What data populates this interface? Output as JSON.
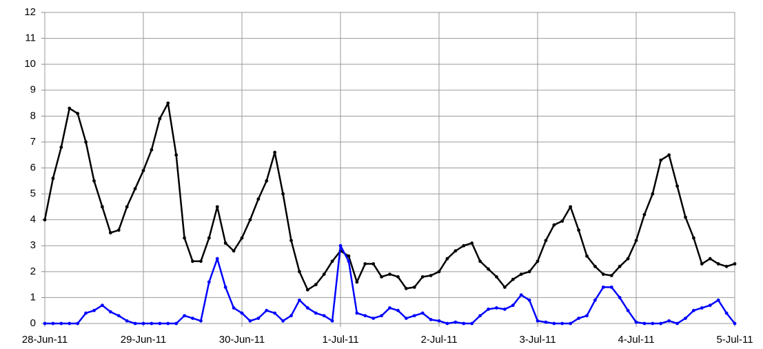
{
  "chart_data": {
    "type": "line",
    "x": [
      0,
      2,
      4,
      6,
      8,
      10,
      12,
      14,
      16,
      18,
      20,
      22,
      24,
      26,
      28,
      30,
      32,
      34,
      36,
      38,
      40,
      42,
      44,
      46,
      48,
      50,
      52,
      54,
      56,
      58,
      60,
      62,
      64,
      66,
      68,
      70,
      72,
      74,
      76,
      78,
      80,
      82,
      84,
      86,
      88,
      90,
      92,
      94,
      96,
      98,
      100,
      102,
      104,
      106,
      108,
      110,
      112,
      114,
      116,
      118,
      120,
      122,
      124,
      126,
      128,
      130,
      132,
      134,
      136,
      138,
      140,
      142,
      144,
      146,
      148,
      150,
      152,
      154,
      156,
      158,
      160,
      162,
      164,
      166,
      168
    ],
    "series": [
      {
        "color": "#000000",
        "values": [
          4.0,
          5.6,
          6.8,
          8.3,
          8.1,
          7.0,
          5.5,
          4.5,
          3.5,
          3.6,
          4.5,
          5.2,
          5.9,
          6.7,
          7.9,
          8.5,
          6.5,
          3.3,
          2.4,
          2.4,
          3.3,
          4.5,
          3.1,
          2.8,
          3.3,
          4.0,
          4.8,
          5.5,
          6.6,
          5.0,
          3.2,
          2.0,
          1.3,
          1.5,
          1.9,
          2.4,
          2.8,
          2.6,
          1.6,
          2.3,
          2.3,
          1.8,
          1.9,
          1.8,
          1.35,
          1.4,
          1.8,
          1.85,
          2.0,
          2.5,
          2.8,
          3.0,
          3.1,
          2.4,
          2.1,
          1.8,
          1.4,
          1.7,
          1.9,
          2.0,
          2.4,
          3.2,
          3.8,
          3.95,
          4.5,
          3.6,
          2.6,
          2.2,
          1.9,
          1.85,
          2.2,
          2.5,
          3.2,
          4.2,
          5.0,
          6.3,
          6.5,
          5.3,
          4.1,
          3.3,
          2.3,
          2.5,
          2.3,
          2.2,
          2.3
        ]
      },
      {
        "color": "#0000ff",
        "values": [
          0,
          0,
          0,
          0,
          0,
          0.4,
          0.5,
          0.7,
          0.45,
          0.3,
          0.1,
          0,
          0,
          0,
          0,
          0,
          0,
          0.3,
          0.2,
          0.1,
          1.6,
          2.5,
          1.4,
          0.6,
          0.4,
          0.1,
          0.2,
          0.5,
          0.4,
          0.1,
          0.3,
          0.9,
          0.6,
          0.4,
          0.3,
          0.1,
          3.0,
          2.4,
          0.4,
          0.3,
          0.2,
          0.3,
          0.6,
          0.5,
          0.2,
          0.3,
          0.4,
          0.15,
          0.1,
          0,
          0.05,
          0,
          0,
          0.3,
          0.55,
          0.6,
          0.55,
          0.7,
          1.1,
          0.9,
          0.1,
          0.05,
          0,
          0,
          0,
          0.2,
          0.3,
          0.9,
          1.4,
          1.4,
          1.0,
          0.5,
          0.05,
          0,
          0,
          0,
          0.1,
          0,
          0.2,
          0.5,
          0.6,
          0.7,
          0.9,
          0.4,
          0
        ]
      }
    ],
    "xlim": [
      0,
      168
    ],
    "xticks": [
      {
        "value": 0,
        "label": "28-Jun-11"
      },
      {
        "value": 24,
        "label": "29-Jun-11"
      },
      {
        "value": 48,
        "label": "30-Jun-11"
      },
      {
        "value": 72,
        "label": "1-Jul-11"
      },
      {
        "value": 96,
        "label": "2-Jul-11"
      },
      {
        "value": 120,
        "label": "3-Jul-11"
      },
      {
        "value": 144,
        "label": "4-Jul-11"
      },
      {
        "value": 168,
        "label": "5-Jul-11"
      }
    ],
    "ylim": [
      0,
      12
    ],
    "yticks": [
      0,
      1,
      2,
      3,
      4,
      5,
      6,
      7,
      8,
      9,
      10,
      11,
      12
    ],
    "grid": true
  }
}
